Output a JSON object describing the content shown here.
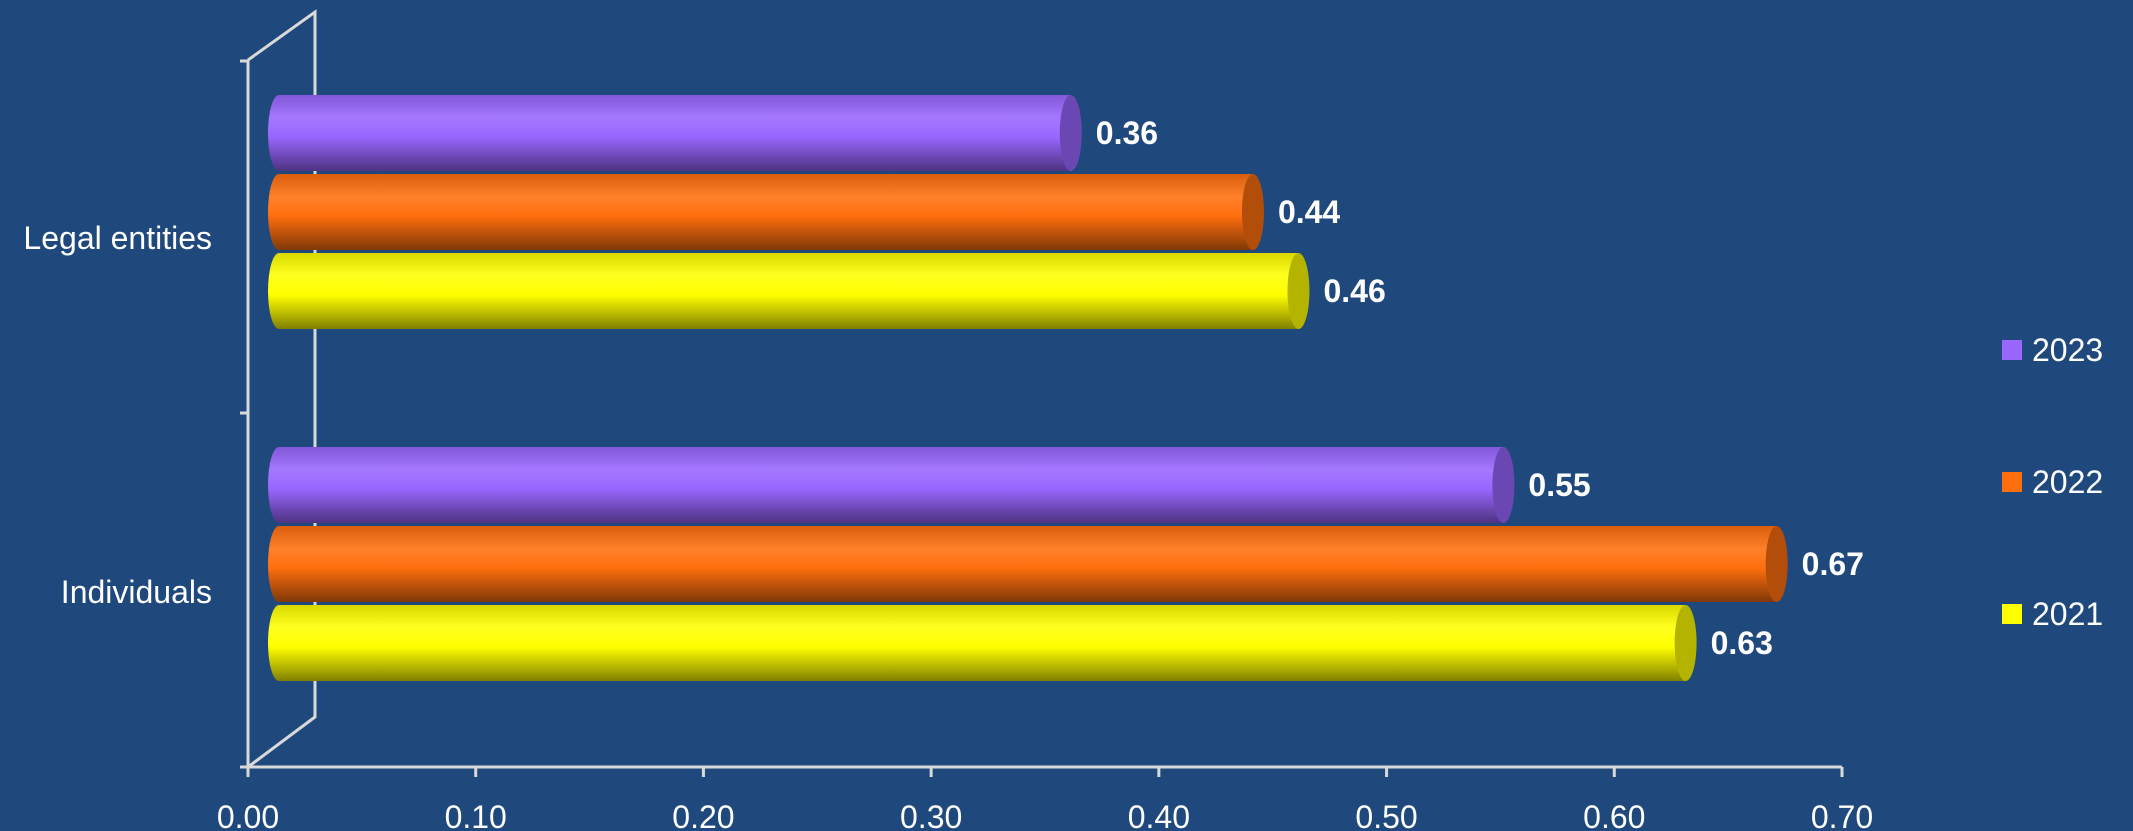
{
  "chart_data": {
    "type": "bar",
    "orientation": "horizontal",
    "style": "3d-cylinder",
    "categories": [
      "Legal entities",
      "Individuals"
    ],
    "series": [
      {
        "name": "2023",
        "color": "#9966ff",
        "values": [
          0.36,
          0.55
        ]
      },
      {
        "name": "2022",
        "color": "#ff6f0e",
        "values": [
          0.44,
          0.67
        ]
      },
      {
        "name": "2021",
        "color": "#ffff00",
        "values": [
          0.46,
          0.63
        ]
      }
    ],
    "data_labels": {
      "2023": [
        "0.36",
        "0.55"
      ],
      "2022": [
        "0.44",
        "0.67"
      ],
      "2021": [
        "0.46",
        "0.63"
      ]
    },
    "x_ticks": [
      "0.00",
      "0.10",
      "0.20",
      "0.30",
      "0.40",
      "0.50",
      "0.60",
      "0.70"
    ],
    "xlim": [
      0,
      0.7
    ],
    "title": "",
    "xlabel": "",
    "ylabel": "",
    "grid": false,
    "legend_position": "right",
    "background_color": "#1f497d"
  }
}
